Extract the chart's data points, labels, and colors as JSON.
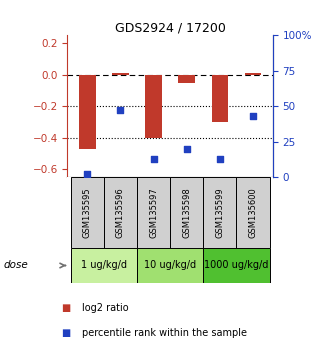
{
  "title": "GDS2924 / 17200",
  "samples": [
    "GSM135595",
    "GSM135596",
    "GSM135597",
    "GSM135598",
    "GSM135599",
    "GSM135600"
  ],
  "log2_ratio": [
    -0.47,
    0.01,
    -0.4,
    -0.05,
    -0.3,
    0.01
  ],
  "percentile_rank": [
    2,
    47,
    13,
    20,
    13,
    43
  ],
  "bar_color": "#C0392B",
  "dot_color": "#2040C0",
  "dose_groups": [
    {
      "label": "1 ug/kg/d",
      "samples": [
        0,
        1
      ],
      "color": "#C8F0A0"
    },
    {
      "label": "10 ug/kg/d",
      "samples": [
        2,
        3
      ],
      "color": "#A0E070"
    },
    {
      "label": "1000 ug/kg/d",
      "samples": [
        4,
        5
      ],
      "color": "#50C030"
    }
  ],
  "ylim_left": [
    -0.65,
    0.25
  ],
  "ylim_right": [
    0,
    100
  ],
  "yticks_left": [
    -0.6,
    -0.4,
    -0.2,
    0.0,
    0.2
  ],
  "yticks_right": [
    0,
    25,
    50,
    75,
    100
  ],
  "ytick_labels_right": [
    "0",
    "25",
    "50",
    "75",
    "100%"
  ],
  "hlines": [
    0.0,
    -0.2,
    -0.4
  ],
  "hline_styles": [
    "--",
    ":",
    ":"
  ],
  "hline_colors": [
    "black",
    "black",
    "black"
  ],
  "dose_label": "dose",
  "legend_log2": "log2 ratio",
  "legend_pct": "percentile rank within the sample",
  "bar_width": 0.5,
  "gsm_bg": "#D0D0D0",
  "fig_width": 3.21,
  "fig_height": 3.54,
  "dpi": 100
}
